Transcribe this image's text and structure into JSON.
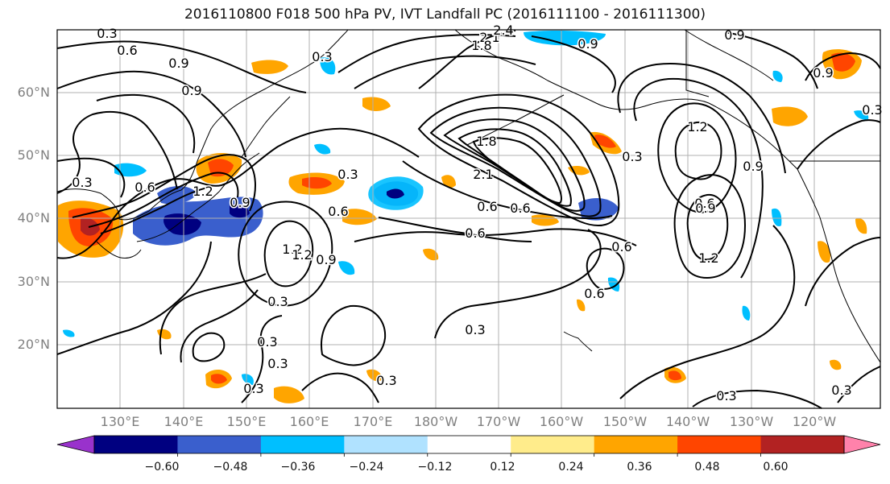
{
  "title": "2016110800 F018 500 hPa PV, IVT Landfall PC (2016111100 - 2016111300)",
  "map": {
    "lat_labels": [
      "60°N",
      "50°N",
      "40°N",
      "30°N",
      "20°N"
    ],
    "lon_labels": [
      "130°E",
      "140°E",
      "150°E",
      "160°E",
      "170°E",
      "180°W",
      "170°W",
      "160°W",
      "150°W",
      "140°W",
      "130°W",
      "120°W"
    ],
    "contour_labels": [
      "0.3",
      "0.6",
      "0.9",
      "0.9",
      "2.1",
      "2.4",
      "1.8",
      "0.3",
      "0.9",
      "0.9",
      "0.3",
      "0.6",
      "1.2",
      "0.9",
      "1.8",
      "2.1",
      "1.2",
      "1.2",
      "0.9",
      "0.6",
      "0.3",
      "0.6",
      "0.6",
      "0.3",
      "0.6",
      "0.3",
      "0.6",
      "0.9",
      "0.3",
      "0.3",
      "0.3",
      "0.3",
      "0.3",
      "0.3",
      "0.3",
      "0.9",
      "0.6",
      "0.3",
      "0.6",
      "1.2",
      "0.9",
      "1.2"
    ]
  },
  "colorbar": {
    "ticks": [
      "−0.60",
      "−0.48",
      "−0.36",
      "−0.24",
      "−0.12",
      "0.12",
      "0.24",
      "0.36",
      "0.48",
      "0.60"
    ],
    "colors": [
      "#9932cc",
      "#000080",
      "#3a5fcd",
      "#00bfff",
      "#b0e2ff",
      "#ffffff",
      "#ffec8b",
      "#ffa500",
      "#ff4500",
      "#b22222",
      "#ff82ab"
    ]
  }
}
